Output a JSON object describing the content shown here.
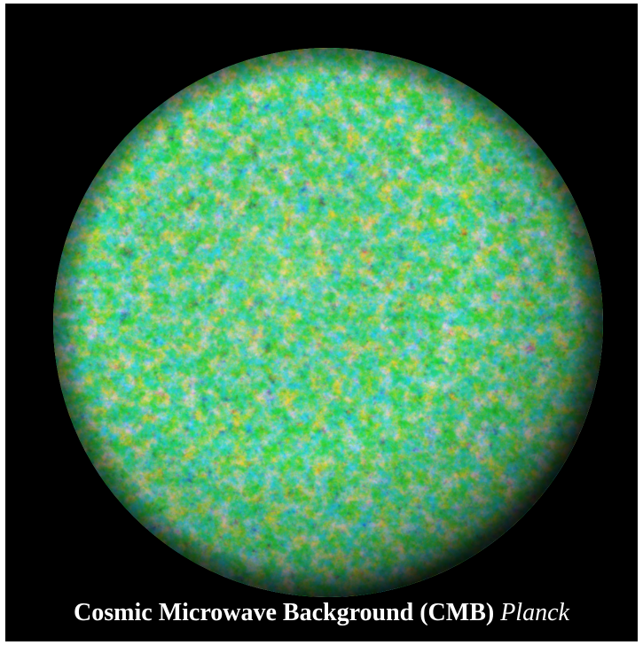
{
  "figure": {
    "title": "Cosmic Microwave Background (CMB)",
    "mission": "Planck"
  },
  "palette": {
    "background": "#000000",
    "frame": "#ffffff",
    "map_colors": [
      "#4a1fd6",
      "#2f6df2",
      "#1fb7f0",
      "#2bd3b4",
      "#5fd38a",
      "#b7dc3c",
      "#e8c431",
      "#ef7a1f",
      "#e32b1b"
    ],
    "caption_color": "#ffffff"
  }
}
